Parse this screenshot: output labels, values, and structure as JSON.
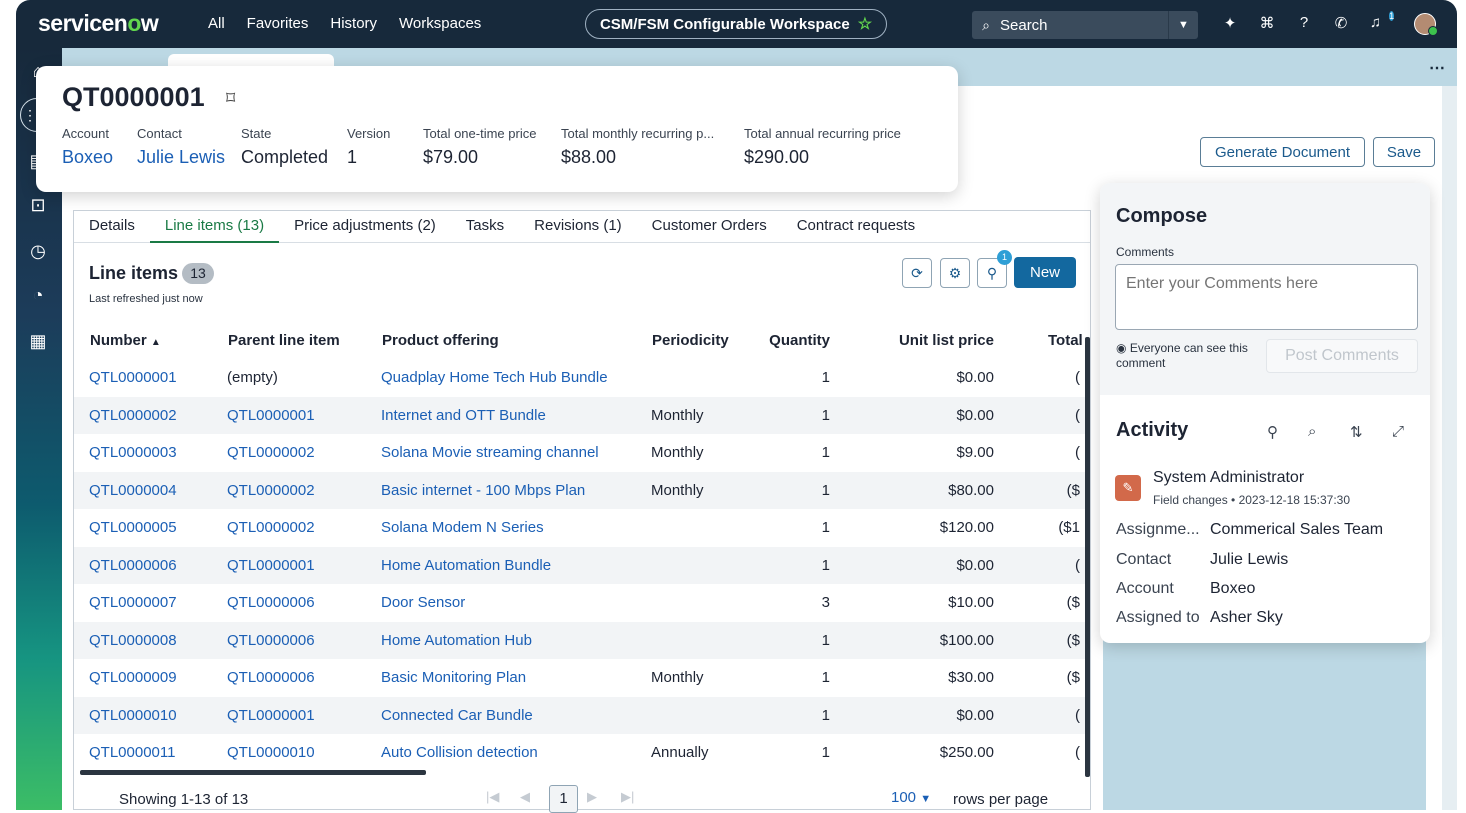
{
  "topbar": {
    "logo": "servicenow",
    "nav": [
      "All",
      "Favorites",
      "History",
      "Workspaces"
    ],
    "workspace": "CSM/FSM Configurable Workspace",
    "search_label": "Search",
    "notification_count": "1"
  },
  "record": {
    "number": "QT0000001",
    "fields": [
      {
        "label": "Account",
        "value": "Boxeo",
        "link": true
      },
      {
        "label": "Contact",
        "value": "Julie Lewis",
        "link": true
      },
      {
        "label": "State",
        "value": "Completed",
        "link": false
      },
      {
        "label": "Version",
        "value": "1",
        "link": false
      },
      {
        "label": "Total one-time price",
        "value": "$79.00",
        "link": false
      },
      {
        "label": "Total monthly recurring p...",
        "value": "$88.00",
        "link": false
      },
      {
        "label": "Total annual recurring price",
        "value": "$290.00",
        "link": false
      }
    ]
  },
  "actions": {
    "generate_document": "Generate Document",
    "save": "Save"
  },
  "tabs": [
    "Details",
    "Line items (13)",
    "Price adjustments (2)",
    "Tasks",
    "Revisions (1)",
    "Customer Orders",
    "Contract requests"
  ],
  "line_items": {
    "title": "Line items",
    "count": "13",
    "refreshed": "Last refreshed just now",
    "filter_badge": "1",
    "new_label": "New",
    "columns": [
      "Number",
      "Parent line item",
      "Product offering",
      "Periodicity",
      "Quantity",
      "Unit list price",
      "Total adjustment"
    ],
    "sort_indicator": "▲",
    "rows": [
      [
        "QTL0000001",
        "(empty)",
        "Quadplay Home Tech Hub Bundle",
        "",
        "1",
        "$0.00",
        "("
      ],
      [
        "QTL0000002",
        "QTL0000001",
        "Internet and OTT Bundle",
        "Monthly",
        "1",
        "$0.00",
        "("
      ],
      [
        "QTL0000003",
        "QTL0000002",
        "Solana Movie streaming channel",
        "Monthly",
        "1",
        "$9.00",
        "("
      ],
      [
        "QTL0000004",
        "QTL0000002",
        "Basic internet - 100 Mbps Plan",
        "Monthly",
        "1",
        "$80.00",
        "($"
      ],
      [
        "QTL0000005",
        "QTL0000002",
        "Solana Modem N Series",
        "",
        "1",
        "$120.00",
        "($1"
      ],
      [
        "QTL0000006",
        "QTL0000001",
        "Home Automation Bundle",
        "",
        "1",
        "$0.00",
        "("
      ],
      [
        "QTL0000007",
        "QTL0000006",
        "Door Sensor",
        "",
        "3",
        "$10.00",
        "($"
      ],
      [
        "QTL0000008",
        "QTL0000006",
        "Home Automation Hub",
        "",
        "1",
        "$100.00",
        "($"
      ],
      [
        "QTL0000009",
        "QTL0000006",
        "Basic Monitoring Plan",
        "Monthly",
        "1",
        "$30.00",
        "($"
      ],
      [
        "QTL0000010",
        "QTL0000001",
        "Connected Car Bundle",
        "",
        "1",
        "$0.00",
        "("
      ],
      [
        "QTL0000011",
        "QTL0000010",
        "Auto Collision detection",
        "Annually",
        "1",
        "$250.00",
        "("
      ]
    ],
    "showing": "Showing 1-13 of 13",
    "page": "1",
    "rows_per_page_value": "100",
    "rows_per_page_label": "rows per page"
  },
  "compose": {
    "title": "Compose",
    "comments_label": "Comments",
    "placeholder": "Enter your Comments here",
    "visibility": "Everyone can see this comment",
    "post_label": "Post Comments"
  },
  "activity": {
    "title": "Activity",
    "author": "System Administrator",
    "meta": "Field changes • 2023-12-18 15:37:30",
    "changes": [
      {
        "k": "Assignme...",
        "v": "Commerical Sales Team"
      },
      {
        "k": "Contact",
        "v": "Julie Lewis"
      },
      {
        "k": "Account",
        "v": "Boxeo"
      },
      {
        "k": "Assigned to",
        "v": "Asher Sky"
      }
    ]
  }
}
